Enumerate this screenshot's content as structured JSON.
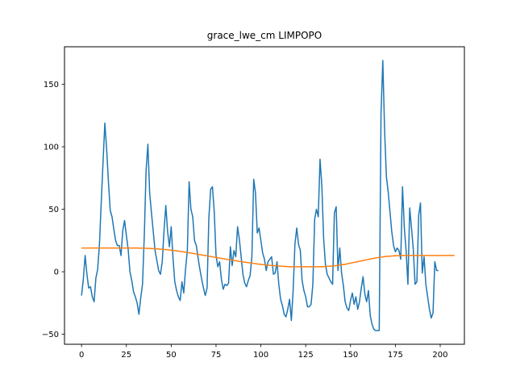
{
  "chart_data": {
    "type": "line",
    "title": "grace_lwe_cm LIMPOPO",
    "xlabel": "",
    "ylabel": "",
    "xlim": [
      -9.5,
      213.5
    ],
    "ylim": [
      -58,
      180
    ],
    "xticks": [
      0,
      25,
      50,
      75,
      100,
      125,
      150,
      175,
      200
    ],
    "yticks": [
      -50,
      0,
      50,
      100,
      150
    ],
    "grid": false,
    "series": [
      {
        "color": "#1f77b4",
        "values": [
          -19,
          -6,
          13,
          -2,
          -13,
          -12,
          -20,
          -24,
          -5,
          2,
          22,
          56,
          88,
          119,
          98,
          72,
          49,
          44,
          34,
          25,
          21,
          21,
          13,
          33,
          41,
          29,
          18,
          0,
          -7,
          -16,
          -20,
          -25,
          -34,
          -21,
          -10,
          29,
          81,
          102,
          63,
          47,
          32,
          17,
          9,
          1,
          -2,
          8,
          33,
          53,
          32,
          20,
          36,
          11,
          -8,
          -15,
          -20,
          -23,
          -8,
          -17,
          2,
          17,
          72,
          50,
          44,
          25,
          21,
          11,
          2,
          -6,
          -13,
          -19,
          -13,
          43,
          66,
          68,
          48,
          13,
          4,
          8,
          -6,
          -14,
          -10,
          -11,
          -9,
          20,
          5,
          17,
          12,
          36,
          26,
          12,
          -2,
          -9,
          -12,
          -7,
          -3,
          12,
          74,
          63,
          31,
          35,
          25,
          15,
          10,
          1,
          8,
          10,
          12,
          -2,
          -1,
          8,
          -10,
          -22,
          -27,
          -34,
          -36,
          -30,
          -22,
          -39,
          -15,
          22,
          35,
          22,
          17,
          -7,
          -15,
          -20,
          -28,
          -28,
          -26,
          -10,
          42,
          50,
          44,
          90,
          69,
          27,
          6,
          -2,
          -5,
          -8,
          -10,
          47,
          52,
          1,
          19,
          -1,
          -11,
          -24,
          -29,
          -31,
          -23,
          -17,
          -26,
          -20,
          -30,
          -24,
          -13,
          -4,
          -18,
          -24,
          -15,
          -35,
          -42,
          -46,
          -47,
          -47,
          -47,
          126,
          169,
          113,
          76,
          64,
          48,
          32,
          21,
          16,
          19,
          17,
          10,
          68,
          35,
          17,
          -10,
          51,
          35,
          18,
          -10,
          -8,
          45,
          55,
          -1,
          12,
          -10,
          -20,
          -30,
          -37,
          -33,
          8,
          1,
          1
        ]
      },
      {
        "color": "#ff7f0e",
        "values": [
          19,
          19,
          19,
          19,
          19,
          19,
          19,
          19,
          19,
          19,
          19,
          19,
          19,
          19,
          19,
          19,
          19,
          19,
          19,
          19,
          19,
          19,
          19,
          19,
          19,
          19,
          19,
          19,
          19,
          19,
          19,
          19,
          18.9,
          18.9,
          18.9,
          18.8,
          18.8,
          18.7,
          18.7,
          18.6,
          18.5,
          18.4,
          18.3,
          18.2,
          18.1,
          18,
          17.9,
          17.7,
          17.6,
          17.4,
          17.3,
          17.1,
          16.9,
          16.7,
          16.5,
          16.3,
          16.1,
          15.9,
          15.7,
          15.4,
          15.2,
          15,
          14.7,
          14.5,
          14.2,
          14,
          13.7,
          13.5,
          13.2,
          13,
          12.7,
          12.5,
          12.2,
          12,
          11.7,
          11.5,
          11.2,
          11,
          10.7,
          10.5,
          10.2,
          10,
          9.7,
          9.5,
          9.3,
          9,
          8.8,
          8.6,
          8.3,
          8.1,
          7.9,
          7.7,
          7.5,
          7.3,
          7.1,
          6.9,
          6.7,
          6.5,
          6.3,
          6.1,
          5.9,
          5.8,
          5.6,
          5.4,
          5.3,
          5.1,
          5,
          4.9,
          4.8,
          4.7,
          4.6,
          4.5,
          4.4,
          4.3,
          4.2,
          4.1,
          4,
          4,
          4,
          4,
          4,
          4,
          4,
          4,
          4,
          4,
          4,
          4,
          4,
          4,
          4,
          4,
          4,
          4,
          4,
          4.1,
          4.2,
          4.3,
          4.4,
          4.5,
          4.6,
          4.8,
          5,
          5.2,
          5.4,
          5.6,
          5.8,
          6,
          6.3,
          6.6,
          6.9,
          7.2,
          7.5,
          7.8,
          8.1,
          8.4,
          8.7,
          9,
          9.3,
          9.6,
          9.9,
          10.2,
          10.5,
          10.8,
          11,
          11.3,
          11.5,
          11.7,
          11.9,
          12.1,
          12.3,
          12.4,
          12.5,
          12.6,
          12.7,
          12.8,
          12.9,
          13,
          13,
          13,
          13,
          13,
          13,
          13,
          13,
          13,
          13,
          13,
          13,
          13,
          13,
          13,
          13,
          13,
          13,
          13,
          13,
          13,
          13,
          13,
          13,
          13,
          13,
          13,
          13,
          13,
          13,
          13,
          13
        ]
      }
    ]
  }
}
